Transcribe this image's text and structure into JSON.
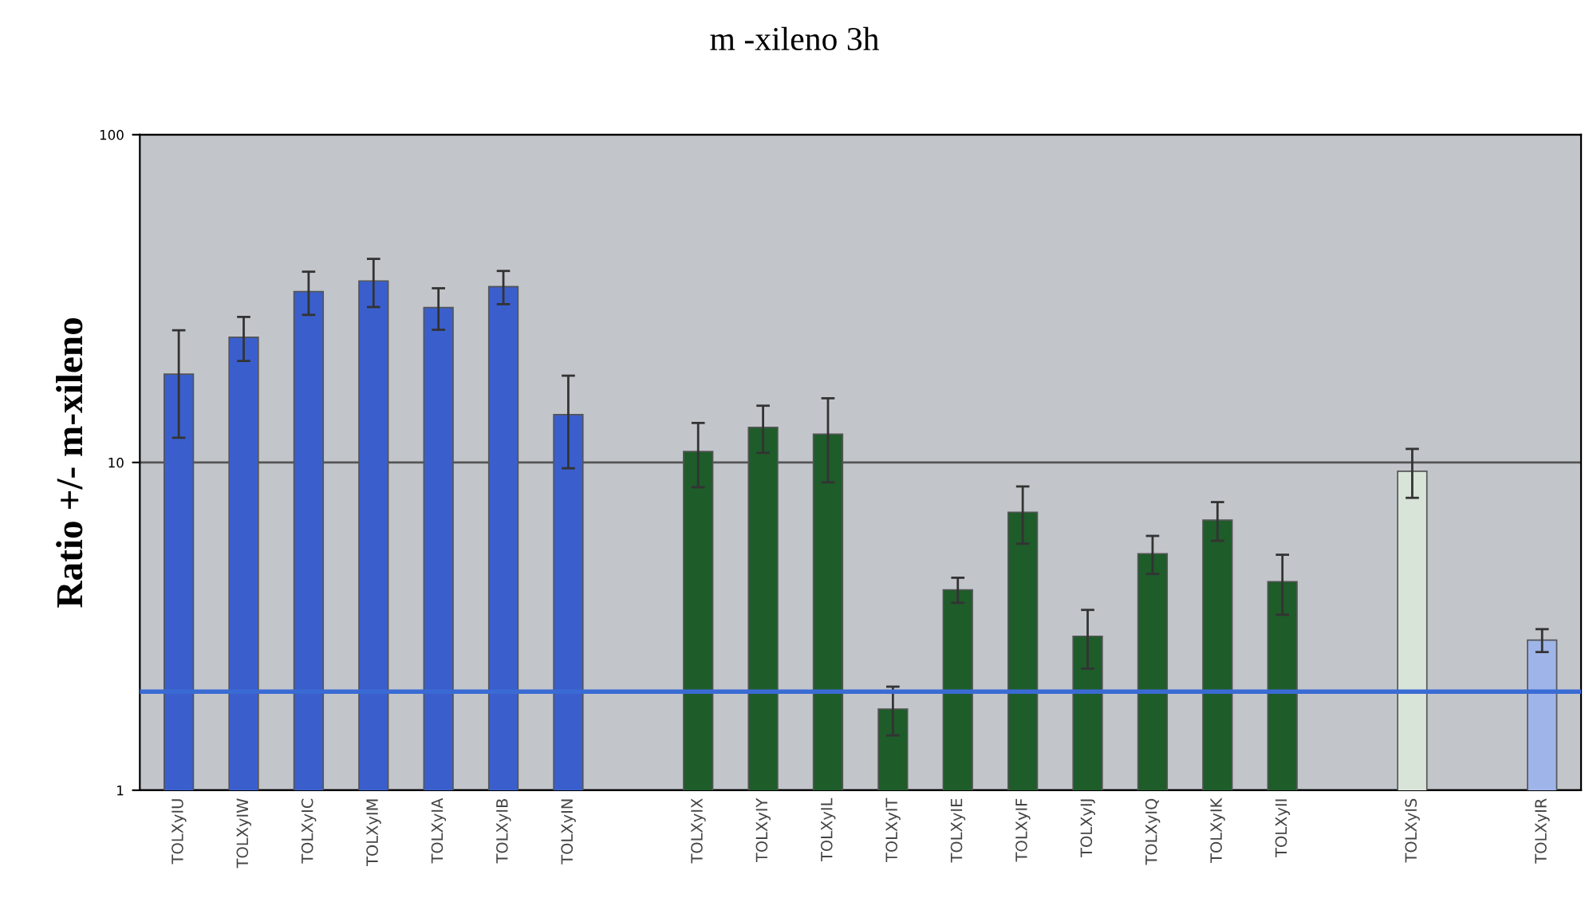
{
  "chart_data": {
    "type": "bar",
    "title": "m -xileno 3h",
    "ylabel": "Ratio +/- m-xileno",
    "categories": [
      "TOLXyIU",
      "TOLXyIW",
      "TOLXyIC",
      "TOLXyIM",
      "TOLXyIA",
      "TOLXyIB",
      "TOLXyIN",
      null,
      "TOLXyIX",
      "TOLXyIY",
      "TOLXyIL",
      "TOLXyIT",
      "TOLXyIE",
      "TOLXyIF",
      "TOLXyIJ",
      "TOLXyIQ",
      "TOLXyIK",
      "TOLXyII",
      null,
      "TOLXyIS",
      null,
      "TOLXyIR"
    ],
    "values": [
      18.6,
      24.1,
      33.2,
      35.8,
      29.7,
      34.4,
      14.0,
      null,
      10.8,
      12.8,
      12.2,
      1.77,
      4.09,
      7.05,
      2.95,
      5.27,
      6.67,
      4.33,
      null,
      9.4,
      null,
      2.87
    ],
    "errors": [
      6.7,
      3.7,
      5,
      6,
      4.3,
      4,
      4.4,
      null,
      2.4,
      2.1,
      3.5,
      0.3,
      0.36,
      1.4,
      0.6,
      0.7,
      0.9,
      0.9,
      null,
      1.6,
      null,
      0.23
    ],
    "colors": [
      "#3a5fcd",
      "#3a5fcd",
      "#3a5fcd",
      "#3a5fcd",
      "#3a5fcd",
      "#3a5fcd",
      "#3a5fcd",
      "#3a5fcd",
      "#1e5c2a",
      "#1e5c2a",
      "#1e5c2a",
      "#1e5c2a",
      "#1e5c2a",
      "#1e5c2a",
      "#1e5c2a",
      "#1e5c2a",
      "#1e5c2a",
      "#1e5c2a",
      "#1e5c2a",
      "#d8e4d8",
      "#d8e4d8",
      "#9fb4e8"
    ],
    "log": true,
    "ylim": [
      1,
      100
    ],
    "yticks": [
      1,
      10,
      100
    ],
    "grid": "y",
    "ref_lines": [
      {
        "axis": "y",
        "value": 2,
        "color": "#3a6bd4"
      }
    ]
  }
}
